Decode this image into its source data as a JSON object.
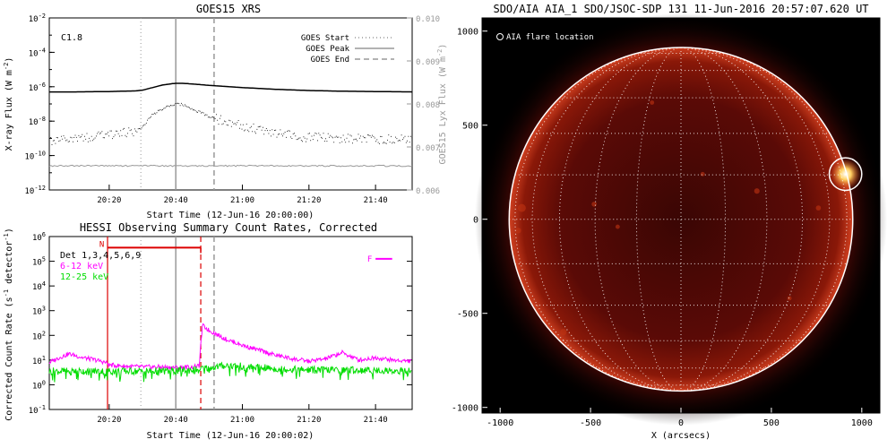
{
  "chart_data": [
    {
      "type": "line",
      "title": "GOES15 XRS",
      "xlabel": "Start Time (12-Jun-16 20:00:00)",
      "ylabel": "X-ray Flux (W m",
      "ylabel_sup": "-2",
      "ylabel_end": ")",
      "ylabel_right": "GOES15 Lyx Flux (W m",
      "ylabel_right_sup": "-2",
      "ylabel_right_end": ")",
      "annotation": "C1.8",
      "x_ticks": [
        "20:20",
        "20:40",
        "21:00",
        "21:20",
        "21:40"
      ],
      "y_ticks_left": [
        {
          "base": "10",
          "exp": "-2"
        },
        {
          "base": "10",
          "exp": "-4"
        },
        {
          "base": "10",
          "exp": "-6"
        },
        {
          "base": "10",
          "exp": "-8"
        },
        {
          "base": "10",
          "exp": "-10"
        },
        {
          "base": "10",
          "exp": "-12"
        }
      ],
      "y_ticks_right": [
        "0.010",
        "0.009",
        "0.008",
        "0.007",
        "0.006"
      ],
      "legend": [
        {
          "label": "GOES Start",
          "style": "dotted"
        },
        {
          "label": "GOES Peak",
          "style": "solid"
        },
        {
          "label": "GOES End",
          "style": "dashed"
        }
      ],
      "xlim_minutes": [
        2,
        111
      ],
      "ylim_log10": [
        -12,
        -2
      ],
      "markers_minutes": {
        "start": 29.5,
        "peak": 40,
        "end": 51.5
      },
      "series": [
        {
          "name": "",
          "color": "#000000",
          "style": "solid",
          "x_minutes": [
            2,
            10,
            20,
            28,
            30,
            33,
            36,
            39,
            40,
            42,
            45,
            50,
            60,
            70,
            80,
            90,
            100,
            111
          ],
          "log10_y": [
            -6.3,
            -6.3,
            -6.28,
            -6.24,
            -6.2,
            -6.05,
            -5.9,
            -5.82,
            -5.8,
            -5.8,
            -5.84,
            -5.92,
            -6.05,
            -6.15,
            -6.22,
            -6.26,
            -6.28,
            -6.3
          ]
        },
        {
          "name": "",
          "color": "#000000",
          "style": "dotted",
          "x_minutes": [
            2,
            10,
            20,
            28,
            30,
            33,
            36,
            39,
            40,
            42,
            45,
            50,
            55,
            60,
            65,
            70,
            80,
            90,
            100,
            111
          ],
          "log10_y": [
            -9.2,
            -9.0,
            -8.8,
            -8.6,
            -8.3,
            -7.6,
            -7.3,
            -7.05,
            -7.0,
            -7.05,
            -7.3,
            -7.75,
            -8.05,
            -8.3,
            -8.5,
            -8.7,
            -8.95,
            -9.0,
            -9.05,
            -9.0
          ]
        },
        {
          "name": "",
          "color": "#999999",
          "style": "solid",
          "x_minutes": [
            2,
            111
          ],
          "log10_y": [
            -10.6,
            -10.6
          ]
        }
      ]
    },
    {
      "type": "line",
      "title": "HESSI Observing Summary Count Rates, Corrected",
      "xlabel": "Start Time (12-Jun-16 20:00:02)",
      "ylabel": "Corrected Count Rate (s",
      "ylabel_sup": "-1",
      "ylabel_mid": " detector",
      "ylabel_sup2": "-1",
      "ylabel_end": ")",
      "x_ticks": [
        "20:20",
        "20:40",
        "21:00",
        "21:20",
        "21:40"
      ],
      "y_ticks_left": [
        {
          "base": "10",
          "exp": "6"
        },
        {
          "base": "10",
          "exp": "5"
        },
        {
          "base": "10",
          "exp": "4"
        },
        {
          "base": "10",
          "exp": "3"
        },
        {
          "base": "10",
          "exp": "2"
        },
        {
          "base": "10",
          "exp": "1"
        },
        {
          "base": "10",
          "exp": "0"
        },
        {
          "base": "10",
          "exp": "-1"
        }
      ],
      "legend": [
        {
          "label": "Det 1,3,4,5,6,9",
          "color": "#000000"
        },
        {
          "label": "6-12 keV",
          "color": "#ff00ff"
        },
        {
          "label": "12-25 keV",
          "color": "#00dd00"
        }
      ],
      "flag_n_label": "N",
      "flag_f_label": "F",
      "xlim_minutes": [
        2,
        111
      ],
      "ylim_log10": [
        -1,
        6
      ],
      "markers_minutes": {
        "start": 29.5,
        "peak": 40,
        "end": 51.5,
        "red_solid": 19.5,
        "red_dashed": 47.5
      },
      "series": [
        {
          "name": "6-12 keV",
          "color": "#ff00ff",
          "x_minutes": [
            2,
            5,
            8,
            12,
            16,
            19,
            20,
            25,
            30,
            35,
            40,
            45,
            47,
            48,
            50,
            55,
            60,
            65,
            70,
            75,
            80,
            85,
            90,
            95,
            100,
            105,
            111
          ],
          "log10_y": [
            0.9,
            1.1,
            1.25,
            1.1,
            1.0,
            0.9,
            0.8,
            0.75,
            0.72,
            0.72,
            0.7,
            0.72,
            0.75,
            2.4,
            2.2,
            1.85,
            1.6,
            1.4,
            1.2,
            1.05,
            0.95,
            1.05,
            1.3,
            1.0,
            1.1,
            1.0,
            0.95
          ]
        },
        {
          "name": "12-25 keV",
          "color": "#00dd00",
          "x_minutes": [
            2,
            10,
            20,
            30,
            40,
            48,
            55,
            60,
            65,
            70,
            80,
            90,
            100,
            111
          ],
          "log10_y": [
            0.55,
            0.55,
            0.55,
            0.55,
            0.55,
            0.65,
            0.78,
            0.75,
            0.7,
            0.65,
            0.6,
            0.6,
            0.58,
            0.55
          ]
        }
      ]
    },
    {
      "type": "heatmap",
      "title": "SDO/AIA AIA_1 SDO/JSOC-SDP 131 11-Jun-2016 20:57:07.620 UT",
      "xlabel": "X (arcsecs)",
      "ylabel": "",
      "x_ticks": [
        "-1000",
        "-500",
        "0",
        "500",
        "1000"
      ],
      "y_ticks": [
        "-1000",
        "-500",
        "0",
        "500",
        "1000"
      ],
      "xlim": [
        -1100,
        1100
      ],
      "ylim": [
        -1030,
        1070
      ],
      "legend": [
        {
          "label": "AIA flare location",
          "marker": "circle"
        }
      ],
      "solar_radius_arcsec": 950,
      "flare_location_arcsec": {
        "x": 910,
        "y": 240,
        "r": 90
      },
      "colors": {
        "background": "#000000",
        "disk": "#5a0a06",
        "limb": "#ffffff"
      }
    }
  ]
}
